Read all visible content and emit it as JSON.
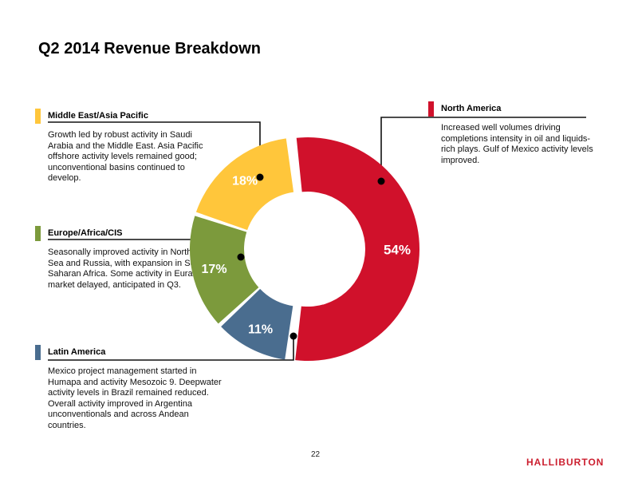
{
  "slide": {
    "title": "Q2 2014 Revenue Breakdown",
    "page_number": "22",
    "logo_text": "HALLIBURTON",
    "logo_color": "#cc1f2f"
  },
  "regions": {
    "middle_east_asia_pacific": {
      "title": "Middle East/Asia Pacific",
      "text": "Growth led by robust activity in Saudi Arabia and the Middle East.  Asia Pacific offshore activity levels remained good; unconventional basins continued to develop.",
      "color": "#ffc63b"
    },
    "europe_africa_cis": {
      "title": "Europe/Africa/CIS",
      "text": "Seasonally improved activity in North Sea and Russia, with expansion in Sub-Saharan Africa. Some activity in Eurasia market delayed, anticipated in Q3.",
      "color": "#7c9a3c"
    },
    "latin_america": {
      "title": "Latin America",
      "text": "Mexico project management started in Humapa and activity Mesozoic 9. Deepwater activity levels in Brazil remained reduced. Overall activity improved in Argentina unconventionals and across Andean countries.",
      "color": "#4a6d8f"
    },
    "north_america": {
      "title": "North America",
      "text": "Increased well volumes driving completions intensity in oil and liquids-rich plays. Gulf of Mexico activity levels improved.",
      "color": "#d0112b"
    }
  },
  "chart_data": {
    "type": "pie",
    "title": "",
    "unit": "%",
    "slices": [
      {
        "name": "North America",
        "value": 54,
        "label": "54%",
        "color": "#d0112b"
      },
      {
        "name": "Latin America",
        "value": 11,
        "label": "11%",
        "color": "#4a6d8f"
      },
      {
        "name": "Europe/Africa/CIS",
        "value": 17,
        "label": "17%",
        "color": "#7c9a3c"
      },
      {
        "name": "Middle East/Asia Pacific",
        "value": 18,
        "label": "18%",
        "color": "#ffc63b"
      }
    ]
  }
}
